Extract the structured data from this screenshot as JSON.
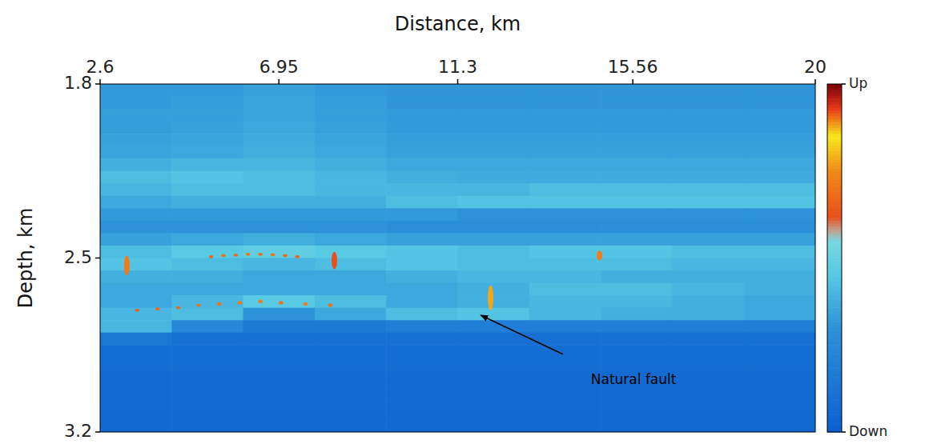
{
  "chart_data": {
    "type": "heatmap",
    "xlabel": "Distance, km",
    "ylabel": "Depth, km",
    "xlim": [
      2.6,
      20
    ],
    "xticks": [
      2.6,
      6.95,
      11.3,
      15.56,
      20
    ],
    "ylim": [
      1.8,
      3.2
    ],
    "yticks": [
      1.8,
      2.5,
      3.2
    ],
    "cells": [
      [
        0.32,
        0.32,
        0.34,
        0.32,
        0.31,
        0.31,
        0.31,
        0.31,
        0.31,
        0.31
      ],
      [
        0.32,
        0.33,
        0.35,
        0.33,
        0.31,
        0.31,
        0.31,
        0.31,
        0.31,
        0.31
      ],
      [
        0.33,
        0.33,
        0.35,
        0.33,
        0.32,
        0.32,
        0.32,
        0.32,
        0.32,
        0.32
      ],
      [
        0.33,
        0.34,
        0.36,
        0.34,
        0.32,
        0.32,
        0.32,
        0.32,
        0.32,
        0.32
      ],
      [
        0.34,
        0.35,
        0.37,
        0.35,
        0.33,
        0.33,
        0.33,
        0.33,
        0.33,
        0.33
      ],
      [
        0.35,
        0.36,
        0.38,
        0.36,
        0.34,
        0.34,
        0.34,
        0.34,
        0.34,
        0.34
      ],
      [
        0.38,
        0.4,
        0.4,
        0.38,
        0.36,
        0.36,
        0.36,
        0.36,
        0.36,
        0.36
      ],
      [
        0.42,
        0.44,
        0.42,
        0.4,
        0.38,
        0.37,
        0.37,
        0.37,
        0.37,
        0.37
      ],
      [
        0.4,
        0.42,
        0.42,
        0.4,
        0.4,
        0.4,
        0.42,
        0.42,
        0.42,
        0.42
      ],
      [
        0.36,
        0.38,
        0.38,
        0.38,
        0.42,
        0.44,
        0.44,
        0.44,
        0.44,
        0.44
      ],
      [
        0.32,
        0.32,
        0.32,
        0.32,
        0.32,
        0.3,
        0.3,
        0.3,
        0.3,
        0.3
      ],
      [
        0.3,
        0.3,
        0.3,
        0.3,
        0.28,
        0.28,
        0.28,
        0.28,
        0.28,
        0.28
      ],
      [
        0.34,
        0.36,
        0.38,
        0.36,
        0.34,
        0.34,
        0.34,
        0.34,
        0.34,
        0.34
      ],
      [
        0.42,
        0.46,
        0.48,
        0.46,
        0.44,
        0.42,
        0.44,
        0.44,
        0.42,
        0.42
      ],
      [
        0.44,
        0.42,
        0.4,
        0.42,
        0.44,
        0.42,
        0.42,
        0.42,
        0.4,
        0.4
      ],
      [
        0.38,
        0.38,
        0.36,
        0.36,
        0.38,
        0.4,
        0.4,
        0.38,
        0.38,
        0.38
      ],
      [
        0.36,
        0.36,
        0.36,
        0.36,
        0.36,
        0.38,
        0.42,
        0.42,
        0.4,
        0.38
      ],
      [
        0.36,
        0.4,
        0.46,
        0.42,
        0.36,
        0.38,
        0.4,
        0.4,
        0.38,
        0.36
      ],
      [
        0.4,
        0.42,
        0.3,
        0.36,
        0.42,
        0.44,
        0.4,
        0.38,
        0.38,
        0.36
      ],
      [
        0.4,
        0.24,
        0.16,
        0.16,
        0.18,
        0.18,
        0.18,
        0.18,
        0.18,
        0.18
      ],
      [
        0.14,
        0.1,
        0.1,
        0.1,
        0.1,
        0.1,
        0.1,
        0.1,
        0.1,
        0.1
      ],
      [
        0.08,
        0.08,
        0.08,
        0.08,
        0.08,
        0.08,
        0.08,
        0.08,
        0.08,
        0.08
      ],
      [
        0.08,
        0.08,
        0.08,
        0.08,
        0.08,
        0.08,
        0.08,
        0.08,
        0.08,
        0.08
      ],
      [
        0.07,
        0.07,
        0.07,
        0.07,
        0.07,
        0.07,
        0.07,
        0.07,
        0.07,
        0.07
      ],
      [
        0.07,
        0.07,
        0.07,
        0.07,
        0.07,
        0.07,
        0.07,
        0.07,
        0.07,
        0.07
      ],
      [
        0.07,
        0.07,
        0.07,
        0.07,
        0.07,
        0.07,
        0.07,
        0.07,
        0.07,
        0.07
      ],
      [
        0.06,
        0.06,
        0.06,
        0.06,
        0.06,
        0.06,
        0.06,
        0.06,
        0.06,
        0.06
      ],
      [
        0.06,
        0.06,
        0.06,
        0.06,
        0.06,
        0.06,
        0.06,
        0.06,
        0.06,
        0.06
      ]
    ],
    "points": {
      "x": [
        3.25,
        8.3,
        12.1,
        14.75,
        5.3,
        5.6,
        5.9,
        6.2,
        6.5,
        6.8,
        7.1,
        7.4,
        3.5,
        4.0,
        4.5,
        5.0,
        5.5,
        6.0,
        6.5,
        7.0,
        7.6,
        8.2
      ],
      "y": [
        2.53,
        2.51,
        2.66,
        2.49,
        2.495,
        2.49,
        2.488,
        2.485,
        2.485,
        2.487,
        2.49,
        2.495,
        2.71,
        2.705,
        2.7,
        2.69,
        2.685,
        2.68,
        2.675,
        2.68,
        2.685,
        2.69
      ],
      "values": [
        0.9,
        0.92,
        0.88,
        0.72,
        0.68,
        0.7,
        0.68,
        0.7,
        0.68,
        0.7,
        0.68,
        0.66,
        0.66,
        0.68,
        0.68,
        0.7,
        0.7,
        0.72,
        0.72,
        0.7,
        0.72,
        0.7
      ],
      "heights": [
        0.08,
        0.07,
        0.1,
        0.04,
        0.012,
        0.012,
        0.012,
        0.012,
        0.012,
        0.012,
        0.012,
        0.012,
        0.012,
        0.012,
        0.012,
        0.012,
        0.014,
        0.014,
        0.014,
        0.014,
        0.014,
        0.014
      ]
    },
    "colorbar": {
      "range": [
        0,
        1
      ],
      "ticks": [
        {
          "value": 0,
          "label": "Down"
        },
        {
          "value": 1,
          "label": "Up"
        }
      ]
    },
    "annotations": [
      {
        "text": "Natural fault",
        "x": 14.54,
        "y": 2.99,
        "arrow_x": 11.86,
        "arrow_y": 2.73
      }
    ]
  }
}
